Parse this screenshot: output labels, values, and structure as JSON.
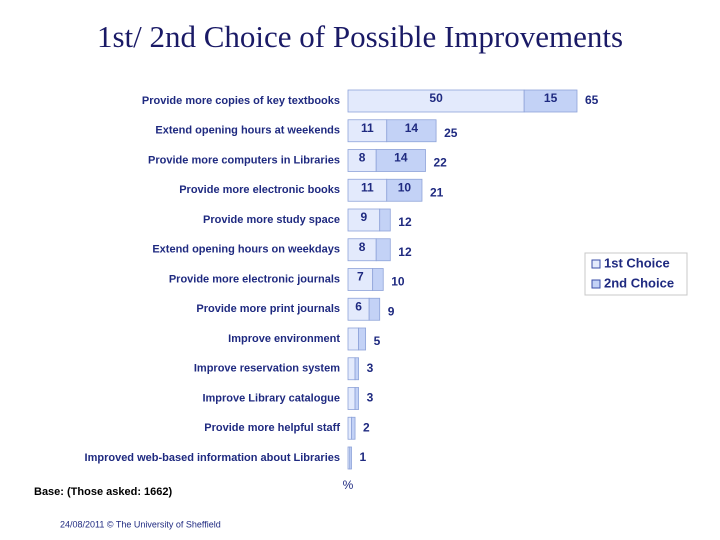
{
  "chart_data": {
    "type": "stacked-bar-horizontal",
    "title": "1st/ 2nd Choice of Possible Improvements",
    "x_label": "%",
    "categories": [
      "Provide more copies of key textbooks",
      "Extend opening hours at weekends",
      "Provide more computers in Libraries",
      "Provide more electronic books",
      "Provide more study space",
      "Extend opening hours on weekdays",
      "Provide more electronic journals",
      "Provide more print journals",
      "Improve environment",
      "Improve reservation system",
      "Improve Library catalogue",
      "Provide more helpful staff",
      "Improved web-based information about Libraries"
    ],
    "series": [
      {
        "name": "1st Choice",
        "color": "#e3eafc",
        "values": [
          50,
          11,
          8,
          11,
          9,
          8,
          7,
          6,
          3,
          2,
          2,
          1,
          0.5
        ]
      },
      {
        "name": "2nd Choice",
        "color": "#c3d2f6",
        "values": [
          15,
          14,
          14,
          10,
          3,
          4,
          3,
          3,
          2,
          1,
          1,
          1,
          0.5
        ]
      }
    ],
    "totals": [
      65,
      25,
      22,
      21,
      12,
      12,
      10,
      9,
      5,
      3,
      3,
      2,
      1
    ],
    "xlim": [
      0,
      65
    ],
    "legend": "right",
    "base_note": "Base: (Those asked: 1662)",
    "footer": "24/08/2011 © The University of Sheffield"
  }
}
